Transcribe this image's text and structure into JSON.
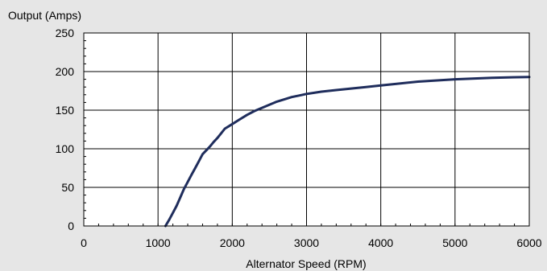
{
  "chart_data": {
    "type": "line",
    "title": "",
    "ylabel": "Output (Amps)",
    "xlabel": "Alternator Speed (RPM)",
    "xlim": [
      0,
      6000
    ],
    "ylim": [
      0,
      250
    ],
    "x_ticks": [
      0,
      1000,
      2000,
      3000,
      4000,
      5000,
      6000
    ],
    "y_ticks": [
      0,
      50,
      100,
      150,
      200,
      250
    ],
    "grid": true,
    "legend": "none",
    "colors": {
      "background": "#e6e6e6",
      "plot_background": "#ffffff",
      "grid": "#000000",
      "series": "#1f2d5c"
    },
    "series": [
      {
        "x": [
          1100,
          1150,
          1200,
          1250,
          1300,
          1350,
          1400,
          1450,
          1500,
          1550,
          1600,
          1650,
          1700,
          1750,
          1800,
          1850,
          1900,
          1950,
          2000,
          2100,
          2200,
          2300,
          2400,
          2500,
          2600,
          2700,
          2800,
          2900,
          3000,
          3200,
          3400,
          3600,
          3800,
          4000,
          4200,
          4500,
          5000,
          5500,
          6000
        ],
        "y": [
          0,
          8,
          17,
          26,
          37,
          48,
          57,
          66,
          75,
          84,
          93,
          98,
          103,
          109,
          114,
          120,
          126,
          129,
          132,
          138,
          144,
          149,
          153,
          157,
          161,
          164,
          167,
          169,
          171,
          174,
          176,
          178,
          180,
          182,
          184,
          187,
          190,
          192,
          193
        ]
      }
    ]
  }
}
